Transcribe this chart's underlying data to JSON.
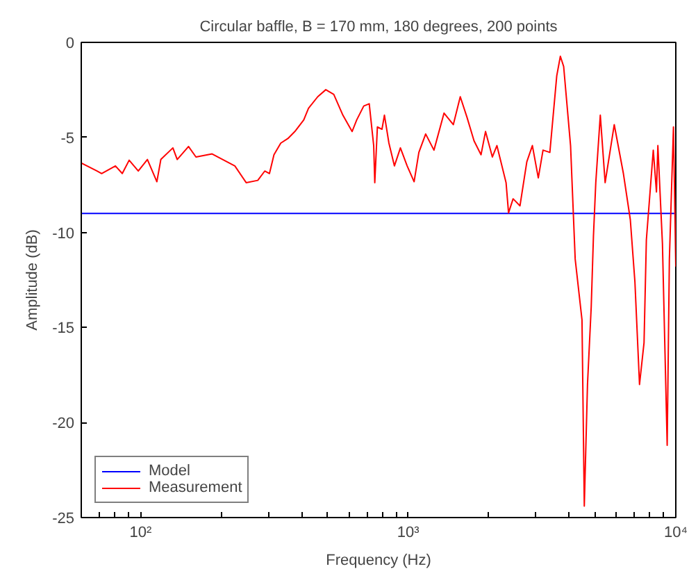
{
  "chart_data": {
    "type": "line",
    "title": "Circular baffle, B = 170 mm, 180 degrees, 200 points",
    "xlabel": "Frequency (Hz)",
    "ylabel": "Amplitude (dB)",
    "log": "x",
    "xlim": [
      60,
      10000
    ],
    "ylim": [
      -25,
      0
    ],
    "xticks": [
      {
        "value": 60,
        "label": null
      },
      {
        "value": 70,
        "label": null
      },
      {
        "value": 80,
        "label": null
      },
      {
        "value": 90,
        "label": null
      },
      {
        "value": 100,
        "label": "10²"
      },
      {
        "value": 200,
        "label": null
      },
      {
        "value": 300,
        "label": null
      },
      {
        "value": 400,
        "label": null
      },
      {
        "value": 500,
        "label": null
      },
      {
        "value": 600,
        "label": null
      },
      {
        "value": 700,
        "label": null
      },
      {
        "value": 800,
        "label": null
      },
      {
        "value": 900,
        "label": null
      },
      {
        "value": 1000,
        "label": "10³"
      },
      {
        "value": 2000,
        "label": null
      },
      {
        "value": 3000,
        "label": null
      },
      {
        "value": 4000,
        "label": null
      },
      {
        "value": 5000,
        "label": null
      },
      {
        "value": 6000,
        "label": null
      },
      {
        "value": 7000,
        "label": null
      },
      {
        "value": 8000,
        "label": null
      },
      {
        "value": 9000,
        "label": null
      },
      {
        "value": 10000,
        "label": "10⁴"
      }
    ],
    "yticks": [
      -25,
      -20,
      -15,
      -10,
      -5,
      0
    ],
    "grid": false,
    "legend": "bottom left",
    "series": [
      {
        "name": "Model",
        "color": "#0000ff",
        "x": [
          60,
          10000
        ],
        "values": [
          -9,
          -9
        ]
      },
      {
        "name": "Measurement",
        "color": "#ff0000",
        "x": [
          60,
          68.7,
          71.5,
          80.5,
          85.4,
          90.6,
          98,
          106,
          115,
          119,
          132,
          137,
          151,
          161,
          185,
          225,
          248,
          274,
          291,
          303,
          315,
          334,
          355,
          377,
          407,
          424,
          459,
          492,
          527,
          570,
          617,
          642,
          682,
          715,
          743,
          750,
          767,
          798,
          815,
          847,
          888,
          935,
          991,
          1052,
          1096,
          1162,
          1248,
          1361,
          1474,
          1565,
          1660,
          1762,
          1871,
          1945,
          2063,
          2145,
          2321,
          2371,
          2466,
          2616,
          2775,
          2911,
          3063,
          3190,
          3383,
          3590,
          3703,
          3810,
          4043,
          4207,
          4461,
          4550,
          4677,
          4830,
          4923,
          5023,
          5222,
          5444,
          5888,
          6370,
          6761,
          7034,
          7318,
          7608,
          7762,
          8238,
          8467,
          8570,
          8914,
          9285,
          9462,
          9800,
          10000
        ],
        "values": [
          -6.35,
          -6.77,
          -6.9,
          -6.5,
          -6.9,
          -6.2,
          -6.77,
          -6.16,
          -7.33,
          -6.16,
          -5.55,
          -6.16,
          -5.48,
          -6.03,
          -5.87,
          -6.5,
          -7.38,
          -7.26,
          -6.77,
          -6.9,
          -5.91,
          -5.3,
          -5.06,
          -4.69,
          -4.08,
          -3.47,
          -2.86,
          -2.49,
          -2.74,
          -3.83,
          -4.69,
          -4.08,
          -3.35,
          -3.23,
          -5.43,
          -7.38,
          -4.45,
          -4.57,
          -3.83,
          -5.3,
          -6.5,
          -5.55,
          -6.5,
          -7.33,
          -5.79,
          -4.82,
          -5.67,
          -3.72,
          -4.33,
          -2.86,
          -3.96,
          -5.18,
          -5.91,
          -4.69,
          -6.03,
          -5.43,
          -7.38,
          -8.97,
          -8.23,
          -8.6,
          -6.28,
          -5.43,
          -7.13,
          -5.67,
          -5.79,
          -1.76,
          -0.73,
          -1.27,
          -5.43,
          -11.4,
          -14.6,
          -24.4,
          -18.0,
          -13.9,
          -10.2,
          -7.38,
          -3.83,
          -7.38,
          -4.33,
          -6.9,
          -9.33,
          -12.6,
          -18.0,
          -15.8,
          -10.4,
          -5.67,
          -7.87,
          -5.43,
          -10.6,
          -21.2,
          -11.4,
          -4.45,
          -11.8
        ]
      }
    ]
  }
}
